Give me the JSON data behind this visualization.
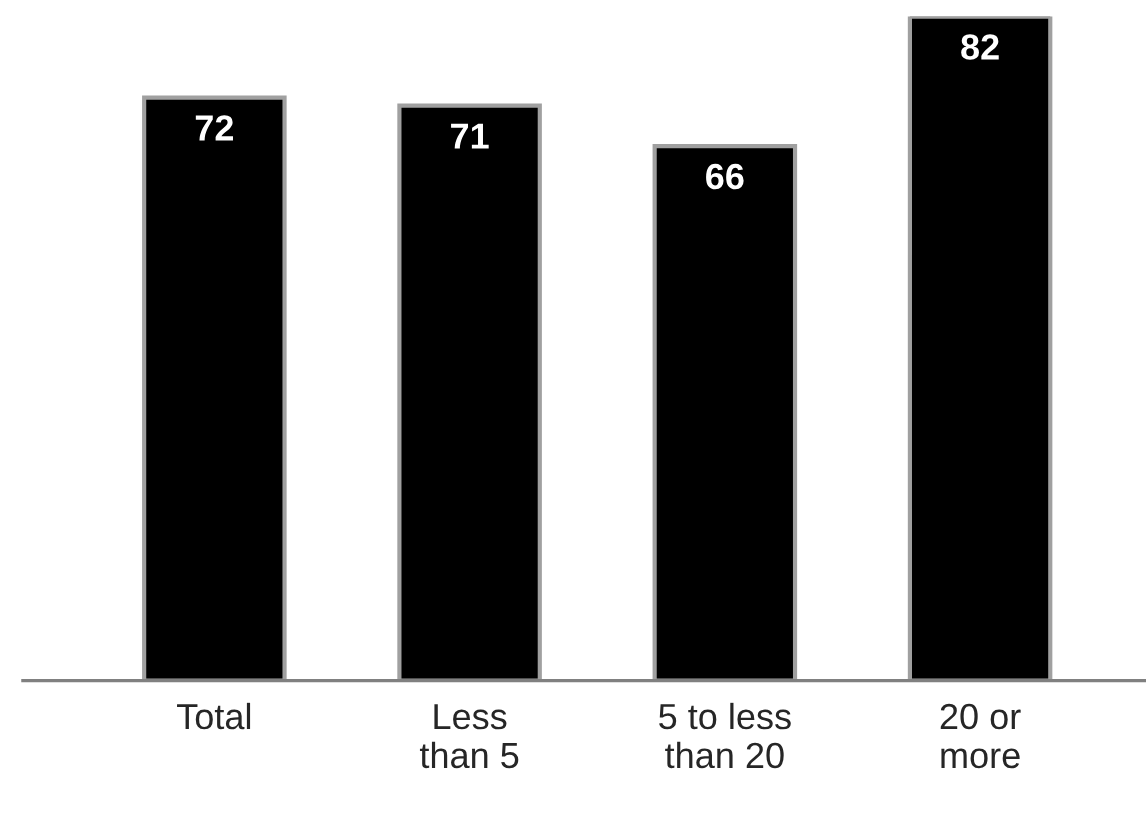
{
  "chart_data": {
    "type": "bar",
    "categories": [
      "Total",
      "Less\nthan 5",
      "5 to less\nthan 20",
      "20 or\nmore"
    ],
    "values": [
      72,
      71,
      66,
      82
    ],
    "color": "#000000",
    "data_labels": true,
    "tick_labels": "x",
    "grid": false,
    "legend": false
  }
}
